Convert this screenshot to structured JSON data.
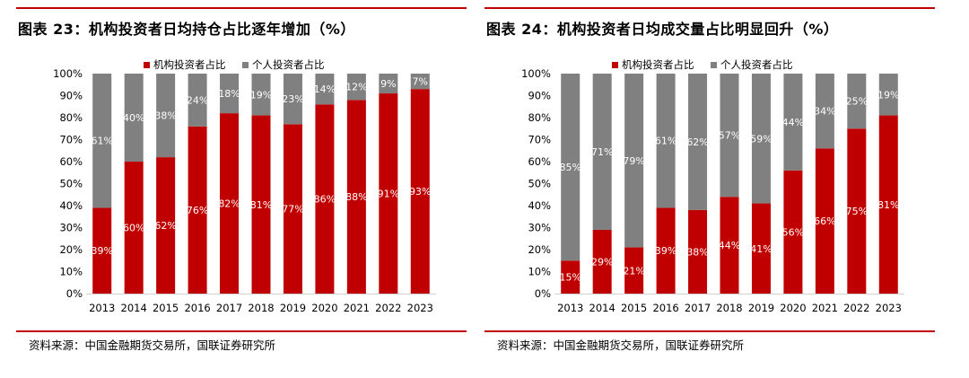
{
  "figure_left": {
    "title": "图表 23：机构投资者日均持仓占比逐年增加（%）",
    "source": "资料来源：中国金融期货交易所，国联证券研究所"
  },
  "figure_right": {
    "title": "图表 24：机构投资者日均成交量占比明显回升（%）",
    "source": "资料来源：中国金融期货交易所，国联证券研究所"
  },
  "colors": {
    "institution": "#c00000",
    "individual": "#808080",
    "rule": "#c00000"
  },
  "chart_data": [
    {
      "type": "bar",
      "stacked": true,
      "title": "图表 23：机构投资者日均持仓占比逐年增加（%）",
      "categories": [
        "2013",
        "2014",
        "2015",
        "2016",
        "2017",
        "2018",
        "2019",
        "2020",
        "2021",
        "2022",
        "2023"
      ],
      "series": [
        {
          "name": "机构投资者占比",
          "values": [
            39,
            60,
            62,
            76,
            82,
            81,
            77,
            86,
            88,
            91,
            93
          ],
          "labels": [
            "39%",
            "60%",
            "62%",
            "76%",
            "82%",
            "81%",
            "77%",
            "86%",
            "88%",
            "91%",
            "93%"
          ]
        },
        {
          "name": "个人投资者占比",
          "values": [
            61,
            40,
            38,
            24,
            18,
            19,
            23,
            14,
            12,
            9,
            7
          ],
          "labels": [
            "61%",
            "40%",
            "38%",
            "24%",
            "18%",
            "19%",
            "23%",
            "14%",
            "12%",
            "9%",
            "7%"
          ]
        }
      ],
      "yticks": [
        "0%",
        "10%",
        "20%",
        "30%",
        "40%",
        "50%",
        "60%",
        "70%",
        "80%",
        "90%",
        "100%"
      ],
      "ylim": [
        0,
        100
      ],
      "legend": "top"
    },
    {
      "type": "bar",
      "stacked": true,
      "title": "图表 24：机构投资者日均成交量占比明显回升（%）",
      "categories": [
        "2013",
        "2014",
        "2015",
        "2016",
        "2017",
        "2018",
        "2019",
        "2020",
        "2021",
        "2022",
        "2023"
      ],
      "series": [
        {
          "name": "机构投资者占比",
          "values": [
            15,
            29,
            21,
            39,
            38,
            44,
            41,
            56,
            66,
            75,
            81
          ],
          "labels": [
            "15%",
            "29%",
            "21%",
            "39%",
            "38%",
            "44%",
            "41%",
            "56%",
            "66%",
            "75%",
            "81%"
          ]
        },
        {
          "name": "个人投资者占比",
          "values": [
            85,
            71,
            79,
            61,
            62,
            57,
            59,
            44,
            34,
            25,
            19
          ],
          "labels": [
            "85%",
            "71%",
            "79%",
            "61%",
            "62%",
            "57%",
            "59%",
            "44%",
            "34%",
            "25%",
            "19%"
          ]
        }
      ],
      "yticks": [
        "0%",
        "10%",
        "20%",
        "30%",
        "40%",
        "50%",
        "60%",
        "70%",
        "80%",
        "90%",
        "100%"
      ],
      "ylim": [
        0,
        100
      ],
      "legend": "top"
    }
  ]
}
